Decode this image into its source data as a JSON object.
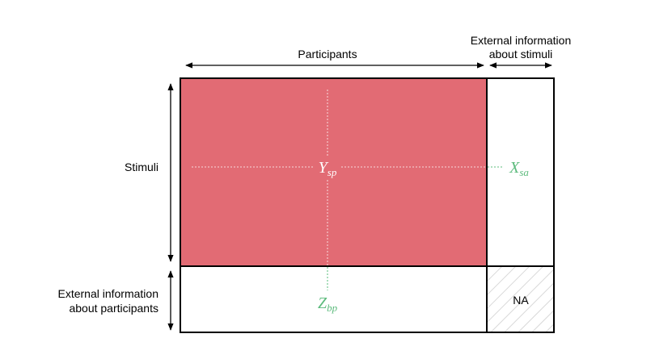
{
  "labels": {
    "participants": "Participants",
    "stimuli": "Stimuli",
    "ext_stimuli_line1": "External information",
    "ext_stimuli_line2": "about stimuli",
    "ext_participants_line1": "External information",
    "ext_participants_line2": "about participants",
    "na": "NA"
  },
  "math": {
    "y_main": "Y",
    "y_sub": "sp",
    "x_main": "X",
    "x_sub": "sa",
    "z_main": "Z",
    "z_sub": "bp"
  },
  "colors": {
    "main_block_fill": "#e26b74",
    "y_label": "#ffffff",
    "x_label": "#5dbb7d",
    "z_label": "#5dbb7d",
    "dotted_line_on_red": "#f3c2c6",
    "dotted_line_on_white": "#7dcb98",
    "hatch": "#cccccc",
    "outline": "#000000"
  }
}
